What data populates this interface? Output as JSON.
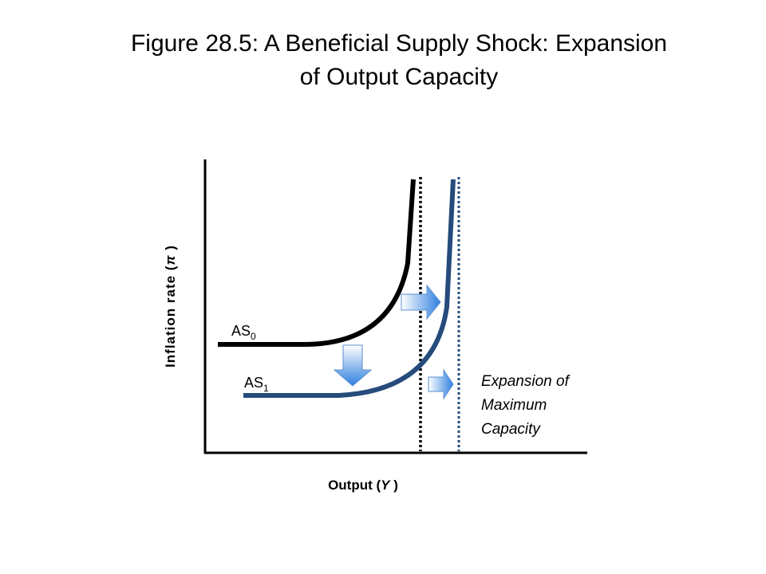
{
  "title": [
    "Figure 28.5: A Beneficial Supply Shock: Expansion",
    "of Output Capacity"
  ],
  "y_axis_label": {
    "before": "Inflation rate (",
    "symbol": "π",
    "after": " )"
  },
  "x_axis_label": {
    "before": "Output (",
    "symbol": "Y",
    "after": " )"
  },
  "curves": [
    {
      "label": "AS",
      "subscript": "0"
    },
    {
      "label": "AS",
      "subscript": "1"
    }
  ],
  "annotation": [
    "Expansion of",
    "Maximum",
    "Capacity"
  ]
}
